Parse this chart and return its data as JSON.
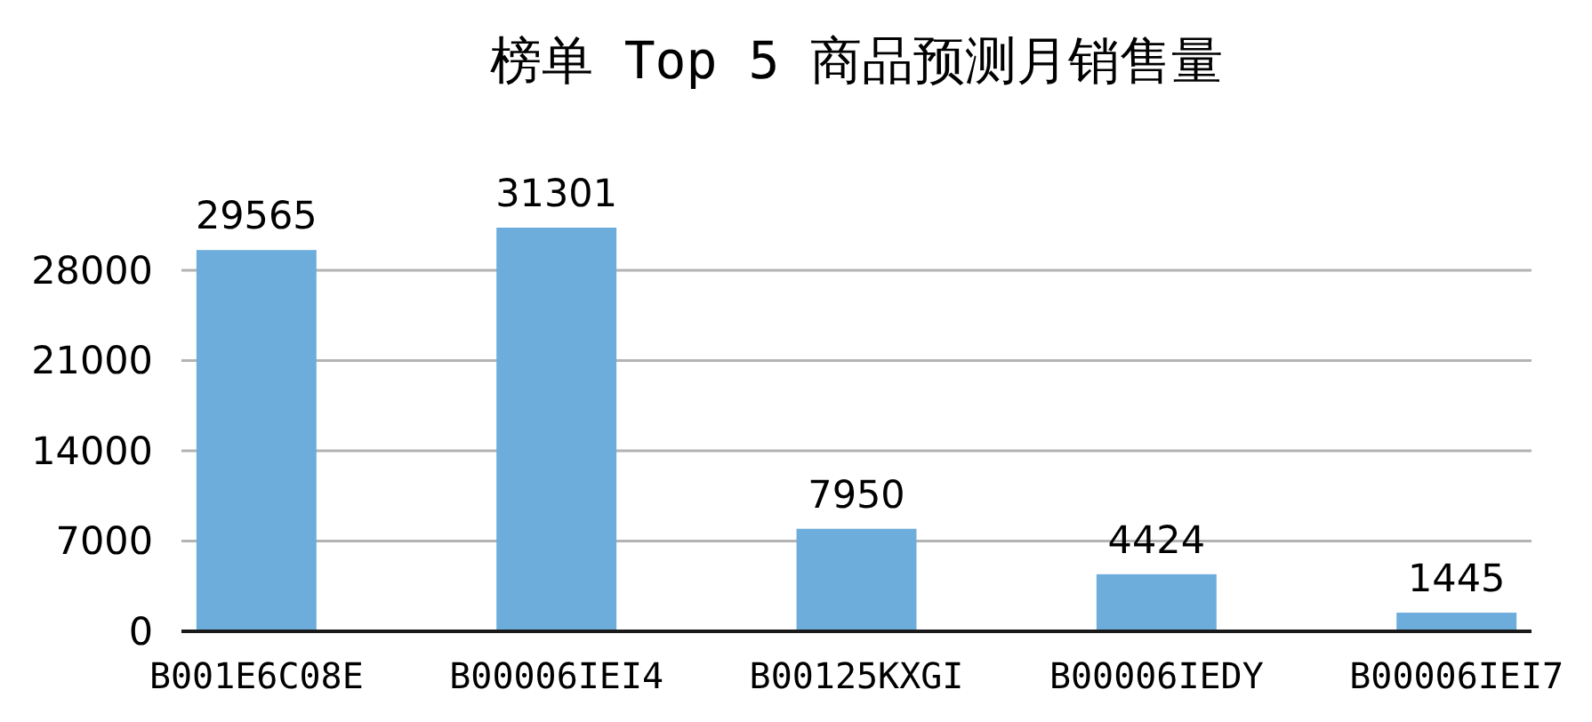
{
  "chart_data": {
    "type": "bar",
    "title": "榜单 Top 5 商品预测月销售量",
    "categories": [
      "B001E6C08E",
      "B00006IEI4",
      "B00125KXGI",
      "B00006IEDY",
      "B00006IEI7"
    ],
    "values": [
      29565,
      31301,
      7950,
      4424,
      1445
    ],
    "color": "#6daddc",
    "ylim": [
      0,
      31301
    ],
    "yticks": [
      0,
      7000,
      14000,
      21000,
      28000
    ],
    "grid": "y",
    "data_labels": true
  }
}
